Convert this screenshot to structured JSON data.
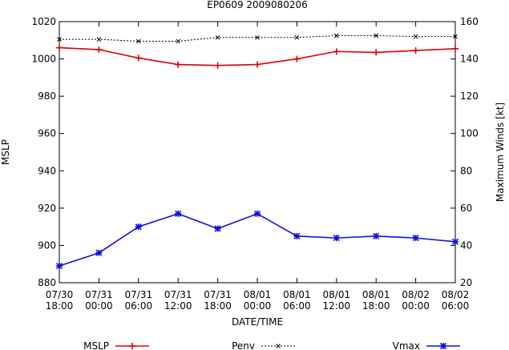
{
  "chart_data": {
    "type": "line",
    "title": "EP0609 2009080206",
    "xlabel": "DATE/TIME",
    "ylabel_left": "MSLP",
    "ylabel_right": "Maximum Winds [kt]",
    "categories": [
      [
        "07/30",
        "18:00"
      ],
      [
        "07/31",
        "00:00"
      ],
      [
        "07/31",
        "06:00"
      ],
      [
        "07/31",
        "12:00"
      ],
      [
        "07/31",
        "18:00"
      ],
      [
        "08/01",
        "00:00"
      ],
      [
        "08/01",
        "06:00"
      ],
      [
        "08/01",
        "12:00"
      ],
      [
        "08/01",
        "18:00"
      ],
      [
        "08/02",
        "00:00"
      ],
      [
        "08/02",
        "06:00"
      ]
    ],
    "ylim_left": [
      880,
      1020
    ],
    "yticks_left": [
      880,
      900,
      920,
      940,
      960,
      980,
      1000,
      1020
    ],
    "ylim_right": [
      20,
      160
    ],
    "yticks_right": [
      20,
      40,
      60,
      80,
      100,
      120,
      140,
      160
    ],
    "grid": false,
    "legend_placement": "bottom",
    "series": [
      {
        "name": "MSLP",
        "axis": "left",
        "color": "#e00000",
        "marker": "plus",
        "dashed": false,
        "values": [
          1006,
          1005,
          1000.5,
          997,
          996.5,
          997,
          1000,
          1004,
          1003.5,
          1004.5,
          1005.5
        ]
      },
      {
        "name": "Penv",
        "axis": "left",
        "color": "#000000",
        "marker": "cross",
        "dashed": true,
        "values": [
          1010.5,
          1010.5,
          1009.5,
          1009.5,
          1011.5,
          1011.5,
          1011.5,
          1012.5,
          1012.5,
          1012,
          1012
        ]
      },
      {
        "name": "Vmax",
        "axis": "right",
        "color": "#1010e0",
        "marker": "star",
        "dashed": false,
        "values": [
          29,
          36,
          50,
          57,
          49,
          57,
          45,
          44,
          45,
          44,
          42
        ]
      }
    ]
  }
}
